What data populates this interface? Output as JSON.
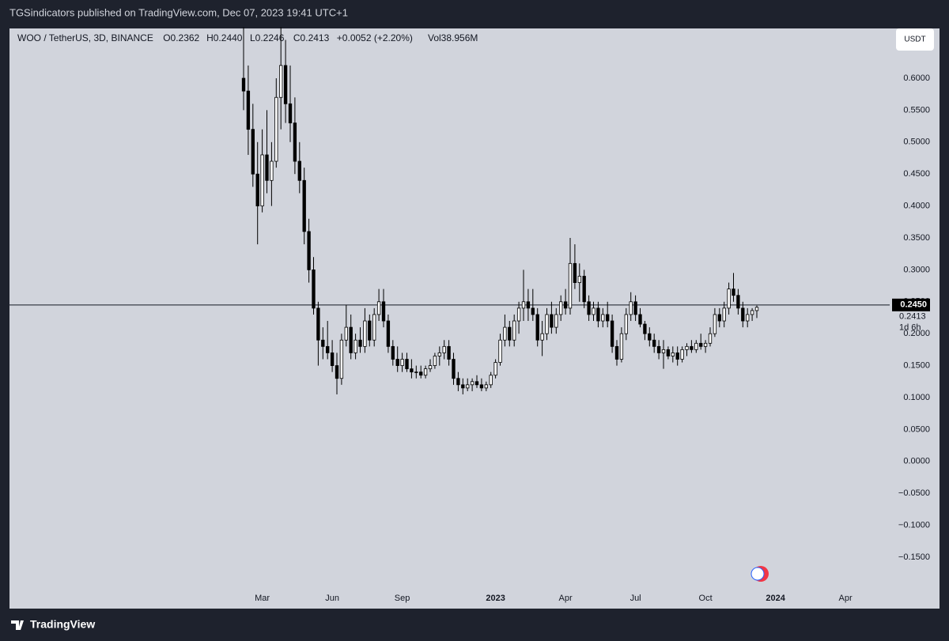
{
  "published": "TGSindicators published on TradingView.com, Dec 07, 2023 19:41 UTC+1",
  "brand": "TradingView",
  "chart_data": {
    "type": "candlestick",
    "title": "WOO / TetherUS, 3D, BINANCE",
    "legend": [
      "O0.2362",
      "H0.2440",
      "L0.2246",
      "C0.2413",
      "+0.0052 (+2.20%)",
      "Vol38.956M"
    ],
    "currency": "USDT",
    "price_line": {
      "value": 0.245,
      "label": "0.2450"
    },
    "last_price_label": "0.2413",
    "countdown": "1d 6h",
    "ylim": [
      -0.2305,
      0.678
    ],
    "yticks": [
      {
        "value": -0.15,
        "label": "−0.1500"
      },
      {
        "value": -0.1,
        "label": "−0.1000"
      },
      {
        "value": -0.05,
        "label": "−0.0500"
      },
      {
        "value": 0,
        "label": "0.0000"
      },
      {
        "value": 0.05,
        "label": "0.0500"
      },
      {
        "value": 0.1,
        "label": "0.1000"
      },
      {
        "value": 0.15,
        "label": "0.1500"
      },
      {
        "value": 0.2,
        "label": "0.2000"
      },
      {
        "value": 0.25,
        "label": "0.2500"
      },
      {
        "value": 0.3,
        "label": "0.3000"
      },
      {
        "value": 0.35,
        "label": "0.3500"
      },
      {
        "value": 0.4,
        "label": "0.4000"
      },
      {
        "value": 0.45,
        "label": "0.4500"
      },
      {
        "value": 0.5,
        "label": "0.5000"
      },
      {
        "value": 0.55,
        "label": "0.5500"
      },
      {
        "value": 0.6,
        "label": "0.6000"
      }
    ],
    "up_color": "#ffffff",
    "down_color": "#000000",
    "wick_color": "#000000",
    "categories": [
      null,
      null,
      null,
      null,
      "Mar",
      null,
      null,
      null,
      null,
      null,
      null,
      null,
      null,
      null,
      null,
      null,
      null,
      null,
      null,
      "Jun",
      null,
      null,
      null,
      null,
      null,
      null,
      null,
      null,
      null,
      null,
      null,
      null,
      null,
      null,
      "Sep",
      null,
      null,
      null,
      null,
      null,
      null,
      null,
      null,
      null,
      null,
      null,
      null,
      null,
      null,
      null,
      null,
      null,
      null,
      null,
      "2023",
      null,
      null,
      null,
      null,
      null,
      null,
      null,
      null,
      null,
      null,
      null,
      null,
      null,
      null,
      "Apr",
      null,
      null,
      null,
      null,
      null,
      null,
      null,
      null,
      null,
      null,
      null,
      null,
      null,
      null,
      "Jul",
      null,
      null,
      null,
      null,
      null,
      null,
      null,
      null,
      null,
      null,
      null,
      null,
      null,
      null,
      "Oct",
      null,
      null,
      null,
      null,
      null,
      null,
      null,
      null,
      null,
      null,
      null,
      null,
      null,
      null,
      "2024",
      null,
      null,
      null,
      null,
      null,
      null,
      null,
      null,
      null,
      null,
      null,
      null,
      null,
      null,
      "Apr",
      null,
      null,
      null,
      null,
      null,
      null,
      null,
      null,
      null
    ],
    "candles": [
      [
        0.6,
        0.68,
        0.55,
        0.58
      ],
      [
        0.58,
        0.62,
        0.48,
        0.52
      ],
      [
        0.52,
        0.56,
        0.43,
        0.45
      ],
      [
        0.45,
        0.5,
        0.34,
        0.4
      ],
      [
        0.4,
        0.52,
        0.39,
        0.48
      ],
      [
        0.48,
        0.55,
        0.42,
        0.44
      ],
      [
        0.44,
        0.5,
        0.4,
        0.47
      ],
      [
        0.47,
        0.6,
        0.46,
        0.57
      ],
      [
        0.57,
        0.68,
        0.52,
        0.62
      ],
      [
        0.62,
        0.66,
        0.53,
        0.56
      ],
      [
        0.56,
        0.62,
        0.5,
        0.53
      ],
      [
        0.53,
        0.57,
        0.45,
        0.47
      ],
      [
        0.47,
        0.5,
        0.42,
        0.44
      ],
      [
        0.44,
        0.46,
        0.34,
        0.36
      ],
      [
        0.36,
        0.38,
        0.28,
        0.3
      ],
      [
        0.3,
        0.32,
        0.23,
        0.24
      ],
      [
        0.24,
        0.25,
        0.15,
        0.19
      ],
      [
        0.19,
        0.21,
        0.16,
        0.18
      ],
      [
        0.18,
        0.22,
        0.16,
        0.17
      ],
      [
        0.17,
        0.19,
        0.14,
        0.15
      ],
      [
        0.15,
        0.17,
        0.105,
        0.13
      ],
      [
        0.13,
        0.2,
        0.12,
        0.19
      ],
      [
        0.19,
        0.245,
        0.18,
        0.21
      ],
      [
        0.21,
        0.23,
        0.16,
        0.17
      ],
      [
        0.17,
        0.2,
        0.16,
        0.19
      ],
      [
        0.19,
        0.21,
        0.17,
        0.18
      ],
      [
        0.18,
        0.24,
        0.17,
        0.22
      ],
      [
        0.22,
        0.23,
        0.18,
        0.19
      ],
      [
        0.19,
        0.24,
        0.18,
        0.23
      ],
      [
        0.23,
        0.27,
        0.22,
        0.25
      ],
      [
        0.25,
        0.27,
        0.21,
        0.22
      ],
      [
        0.22,
        0.23,
        0.17,
        0.18
      ],
      [
        0.18,
        0.19,
        0.15,
        0.16
      ],
      [
        0.16,
        0.18,
        0.14,
        0.15
      ],
      [
        0.15,
        0.17,
        0.14,
        0.16
      ],
      [
        0.16,
        0.17,
        0.14,
        0.145
      ],
      [
        0.145,
        0.16,
        0.13,
        0.14
      ],
      [
        0.14,
        0.15,
        0.13,
        0.14
      ],
      [
        0.14,
        0.15,
        0.13,
        0.135
      ],
      [
        0.135,
        0.15,
        0.13,
        0.145
      ],
      [
        0.145,
        0.16,
        0.14,
        0.15
      ],
      [
        0.15,
        0.17,
        0.145,
        0.165
      ],
      [
        0.165,
        0.18,
        0.15,
        0.17
      ],
      [
        0.17,
        0.19,
        0.16,
        0.18
      ],
      [
        0.18,
        0.19,
        0.15,
        0.16
      ],
      [
        0.16,
        0.17,
        0.12,
        0.13
      ],
      [
        0.13,
        0.14,
        0.11,
        0.12
      ],
      [
        0.12,
        0.13,
        0.105,
        0.115
      ],
      [
        0.115,
        0.13,
        0.11,
        0.12
      ],
      [
        0.12,
        0.13,
        0.11,
        0.125
      ],
      [
        0.125,
        0.135,
        0.115,
        0.12
      ],
      [
        0.12,
        0.13,
        0.11,
        0.115
      ],
      [
        0.115,
        0.125,
        0.11,
        0.12
      ],
      [
        0.12,
        0.14,
        0.115,
        0.135
      ],
      [
        0.135,
        0.16,
        0.13,
        0.155
      ],
      [
        0.155,
        0.2,
        0.15,
        0.19
      ],
      [
        0.19,
        0.23,
        0.18,
        0.21
      ],
      [
        0.21,
        0.22,
        0.18,
        0.19
      ],
      [
        0.19,
        0.23,
        0.18,
        0.22
      ],
      [
        0.22,
        0.25,
        0.2,
        0.24
      ],
      [
        0.24,
        0.3,
        0.22,
        0.25
      ],
      [
        0.25,
        0.27,
        0.22,
        0.24
      ],
      [
        0.24,
        0.27,
        0.22,
        0.23
      ],
      [
        0.23,
        0.24,
        0.18,
        0.19
      ],
      [
        0.19,
        0.22,
        0.165,
        0.2
      ],
      [
        0.2,
        0.24,
        0.19,
        0.23
      ],
      [
        0.23,
        0.25,
        0.2,
        0.21
      ],
      [
        0.21,
        0.24,
        0.2,
        0.23
      ],
      [
        0.23,
        0.26,
        0.22,
        0.25
      ],
      [
        0.25,
        0.27,
        0.23,
        0.24
      ],
      [
        0.24,
        0.35,
        0.23,
        0.31
      ],
      [
        0.31,
        0.34,
        0.27,
        0.28
      ],
      [
        0.28,
        0.31,
        0.25,
        0.29
      ],
      [
        0.29,
        0.3,
        0.24,
        0.25
      ],
      [
        0.25,
        0.26,
        0.22,
        0.23
      ],
      [
        0.23,
        0.25,
        0.22,
        0.24
      ],
      [
        0.24,
        0.25,
        0.21,
        0.22
      ],
      [
        0.22,
        0.24,
        0.21,
        0.23
      ],
      [
        0.23,
        0.25,
        0.21,
        0.22
      ],
      [
        0.22,
        0.23,
        0.17,
        0.18
      ],
      [
        0.18,
        0.19,
        0.15,
        0.16
      ],
      [
        0.16,
        0.21,
        0.155,
        0.2
      ],
      [
        0.2,
        0.24,
        0.19,
        0.23
      ],
      [
        0.23,
        0.265,
        0.22,
        0.25
      ],
      [
        0.25,
        0.26,
        0.22,
        0.23
      ],
      [
        0.23,
        0.24,
        0.21,
        0.215
      ],
      [
        0.215,
        0.22,
        0.19,
        0.2
      ],
      [
        0.2,
        0.21,
        0.18,
        0.19
      ],
      [
        0.19,
        0.2,
        0.17,
        0.18
      ],
      [
        0.18,
        0.19,
        0.16,
        0.17
      ],
      [
        0.17,
        0.19,
        0.145,
        0.175
      ],
      [
        0.175,
        0.18,
        0.16,
        0.165
      ],
      [
        0.165,
        0.18,
        0.155,
        0.17
      ],
      [
        0.17,
        0.18,
        0.15,
        0.16
      ],
      [
        0.16,
        0.18,
        0.155,
        0.175
      ],
      [
        0.175,
        0.185,
        0.165,
        0.18
      ],
      [
        0.18,
        0.19,
        0.17,
        0.175
      ],
      [
        0.175,
        0.19,
        0.17,
        0.185
      ],
      [
        0.185,
        0.2,
        0.175,
        0.18
      ],
      [
        0.18,
        0.19,
        0.17,
        0.185
      ],
      [
        0.185,
        0.21,
        0.18,
        0.2
      ],
      [
        0.2,
        0.24,
        0.195,
        0.23
      ],
      [
        0.23,
        0.24,
        0.21,
        0.22
      ],
      [
        0.22,
        0.25,
        0.21,
        0.24
      ],
      [
        0.24,
        0.28,
        0.23,
        0.27
      ],
      [
        0.27,
        0.295,
        0.25,
        0.26
      ],
      [
        0.26,
        0.27,
        0.23,
        0.24
      ],
      [
        0.24,
        0.25,
        0.21,
        0.22
      ],
      [
        0.22,
        0.24,
        0.21,
        0.23
      ],
      [
        0.23,
        0.24,
        0.22,
        0.2362
      ],
      [
        0.2362,
        0.244,
        0.2246,
        0.2413
      ],
      null,
      null,
      null,
      null,
      null,
      null,
      null,
      null,
      null,
      null,
      null,
      null,
      null,
      null,
      null,
      null,
      null,
      null,
      null,
      null,
      null,
      null,
      null,
      null,
      null,
      null,
      null,
      null
    ]
  }
}
